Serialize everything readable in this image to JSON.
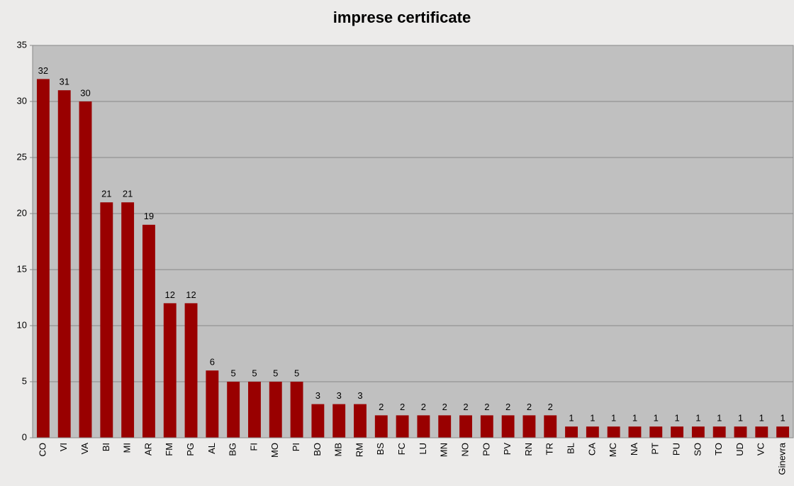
{
  "chart_data": {
    "type": "bar",
    "title": "imprese certificate",
    "categories": [
      "CO",
      "VI",
      "VA",
      "BI",
      "MI",
      "AR",
      "FM",
      "PG",
      "AL",
      "BG",
      "FI",
      "MO",
      "PI",
      "BO",
      "MB",
      "RM",
      "BS",
      "FC",
      "LU",
      "MN",
      "NO",
      "PO",
      "PV",
      "RN",
      "TR",
      "BL",
      "CA",
      "MC",
      "NA",
      "PT",
      "PU",
      "SO",
      "TO",
      "UD",
      "VC",
      "Ginevra"
    ],
    "values": [
      32,
      31,
      30,
      21,
      21,
      19,
      12,
      12,
      6,
      5,
      5,
      5,
      5,
      3,
      3,
      3,
      2,
      2,
      2,
      2,
      2,
      2,
      2,
      2,
      2,
      1,
      1,
      1,
      1,
      1,
      1,
      1,
      1,
      1,
      1,
      1
    ],
    "color": "#990000",
    "plot_color": "#c0c0c0",
    "ylim": [
      0,
      35
    ],
    "yticks": [
      0,
      5,
      10,
      15,
      20,
      25,
      30,
      35
    ],
    "grid": true
  }
}
